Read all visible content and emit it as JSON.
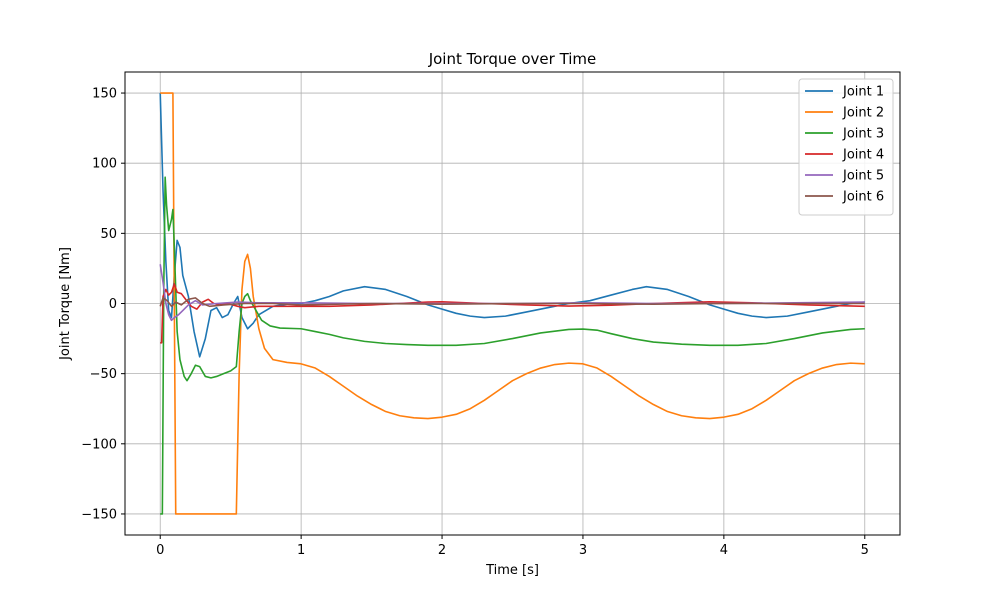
{
  "chart_data": {
    "type": "line",
    "title": "Joint Torque over Time",
    "xlabel": "Time [s]",
    "ylabel": "Joint Torque [Nm]",
    "xlim": [
      -0.25,
      5.25
    ],
    "ylim": [
      -165,
      165
    ],
    "xticks": [
      0,
      1,
      2,
      3,
      4,
      5
    ],
    "yticks": [
      -150,
      -100,
      -50,
      0,
      50,
      100,
      150
    ],
    "grid": true,
    "legend_position": "top-right",
    "series": [
      {
        "name": "Joint 1",
        "color": "#1f77b4",
        "points": [
          [
            0,
            150
          ],
          [
            0.02,
            80
          ],
          [
            0.04,
            30
          ],
          [
            0.06,
            -5
          ],
          [
            0.08,
            -10
          ],
          [
            0.1,
            20
          ],
          [
            0.12,
            45
          ],
          [
            0.14,
            40
          ],
          [
            0.16,
            20
          ],
          [
            0.2,
            5
          ],
          [
            0.24,
            -20
          ],
          [
            0.28,
            -38
          ],
          [
            0.32,
            -25
          ],
          [
            0.36,
            -5
          ],
          [
            0.4,
            -3
          ],
          [
            0.44,
            -10
          ],
          [
            0.48,
            -8
          ],
          [
            0.52,
            0
          ],
          [
            0.55,
            5
          ],
          [
            0.58,
            -10
          ],
          [
            0.62,
            -18
          ],
          [
            0.66,
            -14
          ],
          [
            0.7,
            -8
          ],
          [
            0.8,
            -2
          ],
          [
            0.9,
            -0.5
          ],
          [
            1.0,
            0
          ],
          [
            1.1,
            2
          ],
          [
            1.2,
            5
          ],
          [
            1.3,
            9
          ],
          [
            1.45,
            12
          ],
          [
            1.6,
            10
          ],
          [
            1.75,
            5
          ],
          [
            1.9,
            -1
          ],
          [
            2.0,
            -4
          ],
          [
            2.1,
            -7
          ],
          [
            2.2,
            -9
          ],
          [
            2.3,
            -10
          ],
          [
            2.45,
            -9
          ],
          [
            2.6,
            -6
          ],
          [
            2.75,
            -3
          ],
          [
            2.9,
            0
          ],
          [
            3.05,
            2
          ],
          [
            3.2,
            6
          ],
          [
            3.35,
            10
          ],
          [
            3.45,
            12
          ],
          [
            3.6,
            10
          ],
          [
            3.75,
            5
          ],
          [
            3.9,
            -1
          ],
          [
            4.0,
            -4
          ],
          [
            4.1,
            -7
          ],
          [
            4.2,
            -9
          ],
          [
            4.3,
            -10
          ],
          [
            4.45,
            -9
          ],
          [
            4.6,
            -6
          ],
          [
            4.75,
            -3
          ],
          [
            4.9,
            0
          ],
          [
            5.0,
            1
          ]
        ]
      },
      {
        "name": "Joint 2",
        "color": "#ff7f0e",
        "points": [
          [
            0,
            150
          ],
          [
            0.09,
            150
          ],
          [
            0.11,
            -150
          ],
          [
            0.54,
            -150
          ],
          [
            0.56,
            -50
          ],
          [
            0.58,
            10
          ],
          [
            0.6,
            30
          ],
          [
            0.62,
            35
          ],
          [
            0.64,
            25
          ],
          [
            0.66,
            5
          ],
          [
            0.7,
            -18
          ],
          [
            0.74,
            -32
          ],
          [
            0.8,
            -40
          ],
          [
            0.9,
            -42
          ],
          [
            1.0,
            -43
          ],
          [
            1.1,
            -46
          ],
          [
            1.2,
            -52
          ],
          [
            1.3,
            -59
          ],
          [
            1.4,
            -66
          ],
          [
            1.5,
            -72
          ],
          [
            1.6,
            -77
          ],
          [
            1.7,
            -80
          ],
          [
            1.8,
            -81.5
          ],
          [
            1.9,
            -82
          ],
          [
            2.0,
            -81
          ],
          [
            2.1,
            -79
          ],
          [
            2.2,
            -75
          ],
          [
            2.3,
            -69
          ],
          [
            2.4,
            -62
          ],
          [
            2.5,
            -55
          ],
          [
            2.6,
            -50
          ],
          [
            2.7,
            -46
          ],
          [
            2.8,
            -43.5
          ],
          [
            2.9,
            -42.5
          ],
          [
            3.0,
            -43
          ],
          [
            3.1,
            -46
          ],
          [
            3.2,
            -52
          ],
          [
            3.3,
            -59
          ],
          [
            3.4,
            -66
          ],
          [
            3.5,
            -72
          ],
          [
            3.6,
            -77
          ],
          [
            3.7,
            -80
          ],
          [
            3.8,
            -81.5
          ],
          [
            3.9,
            -82
          ],
          [
            4.0,
            -81
          ],
          [
            4.1,
            -79
          ],
          [
            4.2,
            -75
          ],
          [
            4.3,
            -69
          ],
          [
            4.4,
            -62
          ],
          [
            4.5,
            -55
          ],
          [
            4.6,
            -50
          ],
          [
            4.7,
            -46
          ],
          [
            4.8,
            -43.5
          ],
          [
            4.9,
            -42.5
          ],
          [
            5.0,
            -43
          ]
        ]
      },
      {
        "name": "Joint 3",
        "color": "#2ca02c",
        "points": [
          [
            0,
            -150
          ],
          [
            0.015,
            -150
          ],
          [
            0.025,
            10
          ],
          [
            0.035,
            90
          ],
          [
            0.045,
            70
          ],
          [
            0.06,
            52
          ],
          [
            0.08,
            60
          ],
          [
            0.09,
            67
          ],
          [
            0.1,
            40
          ],
          [
            0.12,
            -20
          ],
          [
            0.14,
            -40
          ],
          [
            0.17,
            -52
          ],
          [
            0.19,
            -55
          ],
          [
            0.22,
            -50
          ],
          [
            0.25,
            -44
          ],
          [
            0.28,
            -45
          ],
          [
            0.32,
            -52
          ],
          [
            0.36,
            -53
          ],
          [
            0.4,
            -52
          ],
          [
            0.45,
            -50
          ],
          [
            0.5,
            -48
          ],
          [
            0.54,
            -45
          ],
          [
            0.56,
            -20
          ],
          [
            0.58,
            0
          ],
          [
            0.6,
            5
          ],
          [
            0.62,
            7
          ],
          [
            0.64,
            2
          ],
          [
            0.68,
            -5
          ],
          [
            0.72,
            -12
          ],
          [
            0.78,
            -16
          ],
          [
            0.85,
            -17.5
          ],
          [
            1.0,
            -18
          ],
          [
            1.1,
            -20
          ],
          [
            1.2,
            -22
          ],
          [
            1.3,
            -24.5
          ],
          [
            1.45,
            -27
          ],
          [
            1.6,
            -28.5
          ],
          [
            1.75,
            -29.3
          ],
          [
            1.9,
            -29.8
          ],
          [
            2.1,
            -29.8
          ],
          [
            2.3,
            -28.5
          ],
          [
            2.5,
            -25
          ],
          [
            2.7,
            -21
          ],
          [
            2.9,
            -18.5
          ],
          [
            3.0,
            -18.2
          ],
          [
            3.1,
            -19
          ],
          [
            3.2,
            -21.5
          ],
          [
            3.35,
            -25
          ],
          [
            3.5,
            -27.5
          ],
          [
            3.7,
            -29
          ],
          [
            3.9,
            -29.8
          ],
          [
            4.1,
            -29.8
          ],
          [
            4.3,
            -28.5
          ],
          [
            4.5,
            -25
          ],
          [
            4.7,
            -21
          ],
          [
            4.9,
            -18.5
          ],
          [
            5.0,
            -18
          ]
        ]
      },
      {
        "name": "Joint 4",
        "color": "#d62728",
        "points": [
          [
            0,
            -28
          ],
          [
            0.01,
            -28
          ],
          [
            0.02,
            5
          ],
          [
            0.04,
            10
          ],
          [
            0.06,
            6
          ],
          [
            0.08,
            8
          ],
          [
            0.1,
            14
          ],
          [
            0.12,
            8
          ],
          [
            0.15,
            7
          ],
          [
            0.18,
            3
          ],
          [
            0.22,
            -2
          ],
          [
            0.26,
            -4
          ],
          [
            0.3,
            1
          ],
          [
            0.34,
            3
          ],
          [
            0.38,
            0
          ],
          [
            0.42,
            -1
          ],
          [
            0.48,
            0
          ],
          [
            0.55,
            -2
          ],
          [
            0.6,
            -3
          ],
          [
            0.7,
            -2
          ],
          [
            0.9,
            -2
          ],
          [
            1.2,
            -2
          ],
          [
            1.5,
            -1
          ],
          [
            1.9,
            1
          ],
          [
            2.0,
            1.2
          ],
          [
            2.3,
            0
          ],
          [
            2.6,
            -1
          ],
          [
            2.9,
            -1.8
          ],
          [
            3.2,
            -1.2
          ],
          [
            3.5,
            0
          ],
          [
            3.9,
            1.2
          ],
          [
            4.2,
            0.5
          ],
          [
            4.6,
            -1
          ],
          [
            5.0,
            -2
          ]
        ]
      },
      {
        "name": "Joint 5",
        "color": "#9467bd",
        "points": [
          [
            0,
            28
          ],
          [
            0.02,
            15
          ],
          [
            0.04,
            0
          ],
          [
            0.06,
            -8
          ],
          [
            0.08,
            -12
          ],
          [
            0.1,
            -10
          ],
          [
            0.13,
            -8
          ],
          [
            0.16,
            -5
          ],
          [
            0.2,
            -1
          ],
          [
            0.25,
            2
          ],
          [
            0.3,
            -1
          ],
          [
            0.4,
            0
          ],
          [
            0.55,
            1
          ],
          [
            0.7,
            0.5
          ],
          [
            1.0,
            0.5
          ],
          [
            1.5,
            0
          ],
          [
            2.0,
            0
          ],
          [
            2.5,
            0
          ],
          [
            3.0,
            0.5
          ],
          [
            3.5,
            0
          ],
          [
            4.0,
            0
          ],
          [
            4.5,
            0.5
          ],
          [
            5.0,
            1
          ]
        ]
      },
      {
        "name": "Joint 6",
        "color": "#8c564b",
        "points": [
          [
            0,
            -2
          ],
          [
            0.02,
            4
          ],
          [
            0.05,
            2
          ],
          [
            0.08,
            -2
          ],
          [
            0.11,
            1
          ],
          [
            0.15,
            -1
          ],
          [
            0.2,
            3
          ],
          [
            0.25,
            4
          ],
          [
            0.3,
            0
          ],
          [
            0.35,
            -2
          ],
          [
            0.45,
            -1
          ],
          [
            0.6,
            0
          ],
          [
            0.8,
            0
          ],
          [
            1.0,
            -1
          ],
          [
            1.5,
            0
          ],
          [
            2.0,
            -0.5
          ],
          [
            2.5,
            0
          ],
          [
            3.0,
            0
          ],
          [
            3.5,
            -0.5
          ],
          [
            4.0,
            0
          ],
          [
            4.5,
            0
          ],
          [
            5.0,
            0
          ]
        ]
      }
    ]
  }
}
